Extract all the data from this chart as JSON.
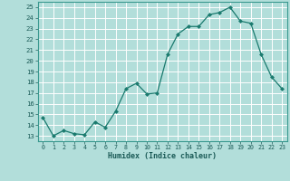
{
  "x": [
    0,
    1,
    2,
    3,
    4,
    5,
    6,
    7,
    8,
    9,
    10,
    11,
    12,
    13,
    14,
    15,
    16,
    17,
    18,
    19,
    20,
    21,
    22,
    23
  ],
  "y": [
    14.7,
    13.0,
    13.5,
    13.2,
    13.1,
    14.3,
    13.8,
    15.3,
    17.4,
    17.9,
    16.9,
    17.0,
    20.6,
    22.5,
    23.2,
    23.2,
    24.3,
    24.5,
    25.0,
    23.7,
    23.5,
    20.6,
    18.5,
    17.4
  ],
  "xlabel": "Humidex (Indice chaleur)",
  "ylim": [
    12.5,
    25.5
  ],
  "xlim": [
    -0.5,
    23.5
  ],
  "yticks": [
    13,
    14,
    15,
    16,
    17,
    18,
    19,
    20,
    21,
    22,
    23,
    24,
    25
  ],
  "xticks": [
    0,
    1,
    2,
    3,
    4,
    5,
    6,
    7,
    8,
    9,
    10,
    11,
    12,
    13,
    14,
    15,
    16,
    17,
    18,
    19,
    20,
    21,
    22,
    23
  ],
  "line_color": "#1a7a6e",
  "marker_color": "#1a7a6e",
  "bg_color": "#b2deda",
  "grid_color": "#ffffff",
  "spine_color": "#3a9990",
  "tick_label_color": "#1a5a56",
  "xlabel_color": "#1a5a56"
}
